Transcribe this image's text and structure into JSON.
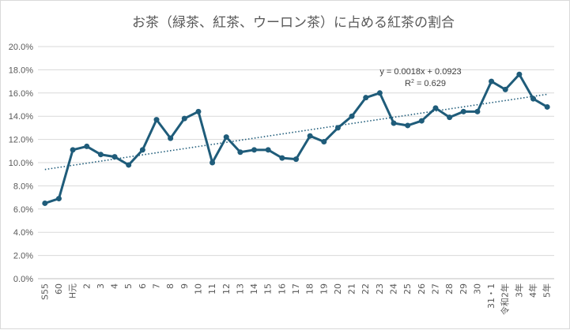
{
  "chart_data": {
    "type": "line",
    "title": "お茶（緑茶、紅茶、ウーロン茶）に占める紅茶の割合",
    "xlabel": "",
    "ylabel": "",
    "ylim": [
      0,
      0.2
    ],
    "y_tick_values": [
      0,
      0.02,
      0.04,
      0.06,
      0.08,
      0.1,
      0.12,
      0.14,
      0.16,
      0.18,
      0.2
    ],
    "y_tick_labels": [
      "0.0%",
      "2.0%",
      "4.0%",
      "6.0%",
      "8.0%",
      "10.0%",
      "12.0%",
      "14.0%",
      "16.0%",
      "18.0%",
      "20.0%"
    ],
    "grid": true,
    "legend": "none",
    "categories": [
      "S55",
      "60",
      "H元",
      "2",
      "3",
      "4",
      "5",
      "6",
      "7",
      "8",
      "9",
      "10",
      "11",
      "12",
      "13",
      "14",
      "15",
      "16",
      "17",
      "18",
      "19",
      "20",
      "21",
      "22",
      "23",
      "24",
      "25",
      "26",
      "27",
      "28",
      "29",
      "30",
      "31・1",
      "令和2年",
      "3年",
      "4年",
      "5年"
    ],
    "series": [
      {
        "color": "#1f5c7a",
        "values": [
          0.065,
          0.069,
          0.111,
          0.114,
          0.107,
          0.105,
          0.098,
          0.111,
          0.137,
          0.121,
          0.138,
          0.144,
          0.1,
          0.122,
          0.109,
          0.111,
          0.111,
          0.104,
          0.103,
          0.123,
          0.118,
          0.13,
          0.14,
          0.156,
          0.16,
          0.134,
          0.132,
          0.136,
          0.147,
          0.139,
          0.144,
          0.144,
          0.17,
          0.163,
          0.176,
          0.155,
          0.148
        ]
      }
    ],
    "trendline": {
      "type": "linear",
      "color": "#1f5c7a",
      "slope": 0.0018,
      "intercept": 0.0923,
      "equation": "y = 0.0018x + 0.0923",
      "r2_prefix": "R",
      "r2_exp": "2",
      "r2_value": " = 0.629"
    }
  }
}
